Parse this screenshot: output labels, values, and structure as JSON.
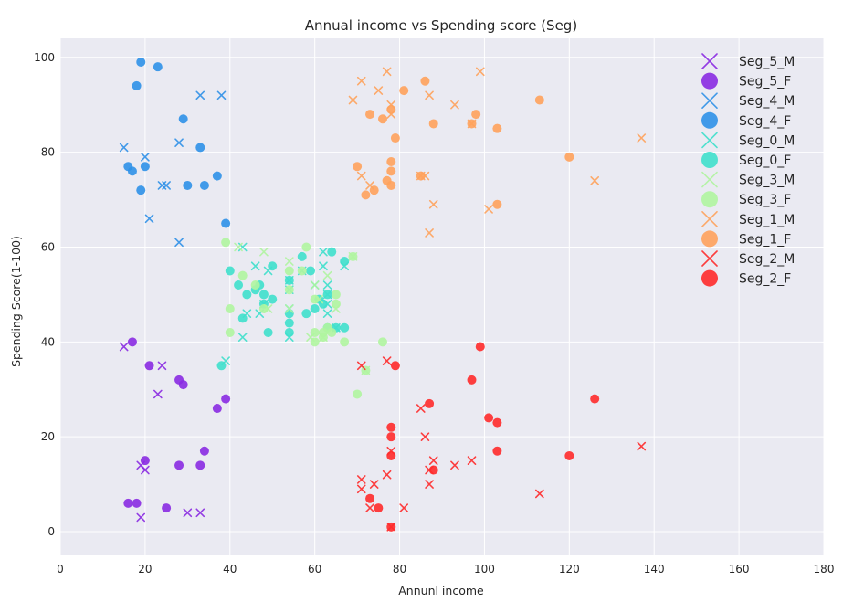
{
  "chart_data": {
    "type": "scatter",
    "title": "Annual income vs Spending score (Seg)",
    "xlabel": "Annunl income",
    "ylabel": "Spending Score(1-100)",
    "xlim": [
      0,
      180
    ],
    "ylim": [
      -5,
      104
    ],
    "xticks": [
      0,
      20,
      40,
      60,
      80,
      100,
      120,
      140,
      160,
      180
    ],
    "yticks": [
      0,
      20,
      40,
      60,
      80,
      100
    ],
    "grid": true,
    "legend_position": "right",
    "series": [
      {
        "name": "Seg_5_M",
        "marker": "x",
        "color": "#8a2be2",
        "points": [
          [
            15,
            39
          ],
          [
            19,
            14
          ],
          [
            19,
            3
          ],
          [
            20,
            13
          ],
          [
            23,
            29
          ],
          [
            24,
            35
          ],
          [
            30,
            4
          ],
          [
            33,
            4
          ]
        ]
      },
      {
        "name": "Seg_5_F",
        "marker": "o",
        "color": "#8a2be2",
        "points": [
          [
            16,
            6
          ],
          [
            17,
            40
          ],
          [
            18,
            6
          ],
          [
            20,
            15
          ],
          [
            21,
            35
          ],
          [
            25,
            5
          ],
          [
            28,
            14
          ],
          [
            28,
            32
          ],
          [
            29,
            31
          ],
          [
            33,
            14
          ],
          [
            34,
            17
          ],
          [
            37,
            26
          ],
          [
            39,
            28
          ]
        ]
      },
      {
        "name": "Seg_4_M",
        "marker": "x",
        "color": "#2f91e8",
        "points": [
          [
            15,
            81
          ],
          [
            20,
            79
          ],
          [
            21,
            66
          ],
          [
            24,
            73
          ],
          [
            25,
            73
          ],
          [
            28,
            82
          ],
          [
            28,
            61
          ],
          [
            33,
            92
          ],
          [
            38,
            92
          ]
        ]
      },
      {
        "name": "Seg_4_F",
        "marker": "o",
        "color": "#2f91e8",
        "points": [
          [
            16,
            77
          ],
          [
            17,
            76
          ],
          [
            18,
            94
          ],
          [
            19,
            99
          ],
          [
            19,
            72
          ],
          [
            20,
            77
          ],
          [
            23,
            98
          ],
          [
            29,
            87
          ],
          [
            30,
            73
          ],
          [
            33,
            81
          ],
          [
            34,
            73
          ],
          [
            37,
            75
          ],
          [
            39,
            65
          ]
        ]
      },
      {
        "name": "Seg_0_M",
        "marker": "x",
        "color": "#3fe0cc",
        "points": [
          [
            39,
            36
          ],
          [
            43,
            60
          ],
          [
            43,
            41
          ],
          [
            44,
            46
          ],
          [
            46,
            56
          ],
          [
            47,
            46
          ],
          [
            48,
            48
          ],
          [
            49,
            55
          ],
          [
            54,
            41
          ],
          [
            54,
            47
          ],
          [
            54,
            51
          ],
          [
            54,
            53
          ],
          [
            57,
            55
          ],
          [
            60,
            52
          ],
          [
            62,
            59
          ],
          [
            62,
            56
          ],
          [
            63,
            46
          ],
          [
            63,
            48
          ],
          [
            63,
            50
          ],
          [
            63,
            52
          ],
          [
            65,
            43
          ],
          [
            67,
            56
          ]
        ]
      },
      {
        "name": "Seg_0_F",
        "marker": "o",
        "color": "#3fe0cc",
        "points": [
          [
            38,
            35
          ],
          [
            40,
            55
          ],
          [
            42,
            52
          ],
          [
            43,
            45
          ],
          [
            44,
            50
          ],
          [
            46,
            51
          ],
          [
            47,
            52
          ],
          [
            48,
            48
          ],
          [
            48,
            50
          ],
          [
            49,
            42
          ],
          [
            50,
            49
          ],
          [
            50,
            56
          ],
          [
            54,
            44
          ],
          [
            54,
            42
          ],
          [
            54,
            46
          ],
          [
            54,
            53
          ],
          [
            57,
            58
          ],
          [
            58,
            46
          ],
          [
            59,
            55
          ],
          [
            60,
            47
          ],
          [
            61,
            49
          ],
          [
            62,
            48
          ],
          [
            63,
            50
          ],
          [
            63,
            43
          ],
          [
            64,
            59
          ],
          [
            65,
            43
          ],
          [
            67,
            43
          ],
          [
            67,
            57
          ]
        ]
      },
      {
        "name": "Seg_3_M",
        "marker": "x",
        "color": "#b0f5a0",
        "points": [
          [
            42,
            60
          ],
          [
            48,
            59
          ],
          [
            49,
            47
          ],
          [
            54,
            47
          ],
          [
            54,
            57
          ],
          [
            59,
            41
          ],
          [
            60,
            52
          ],
          [
            61,
            49
          ],
          [
            62,
            41
          ],
          [
            63,
            54
          ],
          [
            65,
            47
          ],
          [
            69,
            58
          ],
          [
            72,
            34
          ]
        ]
      },
      {
        "name": "Seg_3_F",
        "marker": "o",
        "color": "#b0f5a0",
        "points": [
          [
            39,
            61
          ],
          [
            40,
            47
          ],
          [
            40,
            42
          ],
          [
            43,
            54
          ],
          [
            46,
            52
          ],
          [
            48,
            47
          ],
          [
            54,
            55
          ],
          [
            54,
            51
          ],
          [
            57,
            55
          ],
          [
            58,
            60
          ],
          [
            60,
            40
          ],
          [
            60,
            42
          ],
          [
            60,
            49
          ],
          [
            62,
            41
          ],
          [
            62,
            42
          ],
          [
            63,
            43
          ],
          [
            64,
            42
          ],
          [
            65,
            48
          ],
          [
            65,
            50
          ],
          [
            67,
            40
          ],
          [
            69,
            58
          ],
          [
            70,
            29
          ],
          [
            72,
            34
          ],
          [
            76,
            40
          ]
        ]
      },
      {
        "name": "Seg_1_M",
        "marker": "x",
        "color": "#ffa25c",
        "points": [
          [
            69,
            91
          ],
          [
            71,
            95
          ],
          [
            71,
            75
          ],
          [
            73,
            73
          ],
          [
            75,
            93
          ],
          [
            77,
            97
          ],
          [
            78,
            90
          ],
          [
            78,
            88
          ],
          [
            85,
            75
          ],
          [
            86,
            75
          ],
          [
            87,
            63
          ],
          [
            87,
            92
          ],
          [
            88,
            69
          ],
          [
            93,
            90
          ],
          [
            97,
            86
          ],
          [
            99,
            97
          ],
          [
            101,
            68
          ],
          [
            126,
            74
          ],
          [
            137,
            83
          ]
        ]
      },
      {
        "name": "Seg_1_F",
        "marker": "o",
        "color": "#ffa25c",
        "points": [
          [
            70,
            77
          ],
          [
            72,
            71
          ],
          [
            73,
            88
          ],
          [
            74,
            72
          ],
          [
            76,
            87
          ],
          [
            77,
            74
          ],
          [
            78,
            73
          ],
          [
            78,
            76
          ],
          [
            78,
            78
          ],
          [
            78,
            89
          ],
          [
            79,
            83
          ],
          [
            81,
            93
          ],
          [
            85,
            75
          ],
          [
            86,
            95
          ],
          [
            88,
            86
          ],
          [
            97,
            86
          ],
          [
            98,
            88
          ],
          [
            103,
            85
          ],
          [
            103,
            69
          ],
          [
            113,
            91
          ],
          [
            120,
            79
          ]
        ]
      },
      {
        "name": "Seg_2_M",
        "marker": "x",
        "color": "#ff2b2b",
        "points": [
          [
            71,
            35
          ],
          [
            71,
            11
          ],
          [
            71,
            9
          ],
          [
            73,
            5
          ],
          [
            74,
            10
          ],
          [
            77,
            36
          ],
          [
            77,
            12
          ],
          [
            78,
            1
          ],
          [
            78,
            17
          ],
          [
            81,
            5
          ],
          [
            85,
            26
          ],
          [
            86,
            20
          ],
          [
            87,
            10
          ],
          [
            87,
            13
          ],
          [
            88,
            15
          ],
          [
            93,
            14
          ],
          [
            97,
            15
          ],
          [
            113,
            8
          ],
          [
            137,
            18
          ]
        ]
      },
      {
        "name": "Seg_2_F",
        "marker": "o",
        "color": "#ff2b2b",
        "points": [
          [
            73,
            7
          ],
          [
            75,
            5
          ],
          [
            78,
            1
          ],
          [
            78,
            16
          ],
          [
            78,
            20
          ],
          [
            78,
            22
          ],
          [
            79,
            35
          ],
          [
            87,
            27
          ],
          [
            88,
            13
          ],
          [
            97,
            32
          ],
          [
            99,
            39
          ],
          [
            101,
            24
          ],
          [
            103,
            23
          ],
          [
            103,
            17
          ],
          [
            120,
            16
          ],
          [
            126,
            28
          ]
        ]
      }
    ]
  }
}
